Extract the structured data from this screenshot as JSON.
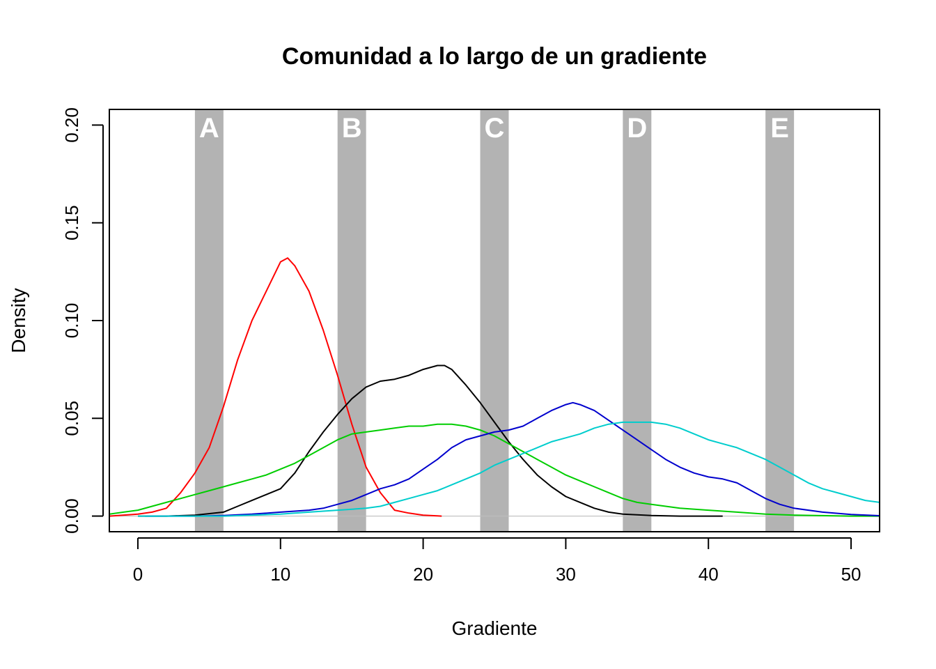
{
  "chart_data": {
    "type": "line",
    "title": "Comunidad a lo largo de un gradiente",
    "xlabel": "Gradiente",
    "ylabel": "Density",
    "xlim": [
      -2,
      52
    ],
    "ylim": [
      -0.008,
      0.208
    ],
    "x_ticks": [
      0,
      10,
      20,
      30,
      40,
      50
    ],
    "x_tick_labels": [
      "0",
      "10",
      "20",
      "30",
      "40",
      "50"
    ],
    "y_ticks": [
      0,
      0.05,
      0.1,
      0.15,
      0.2
    ],
    "y_tick_labels": [
      "0.00",
      "0.05",
      "0.10",
      "0.15",
      "0.20"
    ],
    "baseline_color": "#bebebe",
    "bands": [
      {
        "label": "A",
        "from": 4,
        "to": 6
      },
      {
        "label": "B",
        "from": 14,
        "to": 16
      },
      {
        "label": "C",
        "from": 24,
        "to": 26
      },
      {
        "label": "D",
        "from": 34,
        "to": 36
      },
      {
        "label": "E",
        "from": 44,
        "to": 46
      }
    ],
    "band_color": "#b3b3b3",
    "series": [
      {
        "color": "#ff0000",
        "points": [
          [
            -2,
            0
          ],
          [
            0,
            0.001
          ],
          [
            1,
            0.002
          ],
          [
            2,
            0.004
          ],
          [
            3,
            0.012
          ],
          [
            4,
            0.022
          ],
          [
            5,
            0.035
          ],
          [
            6,
            0.056
          ],
          [
            7,
            0.08
          ],
          [
            8,
            0.1
          ],
          [
            9,
            0.115
          ],
          [
            10,
            0.13
          ],
          [
            10.5,
            0.132
          ],
          [
            11,
            0.128
          ],
          [
            12,
            0.115
          ],
          [
            13,
            0.095
          ],
          [
            14,
            0.072
          ],
          [
            15,
            0.047
          ],
          [
            16,
            0.025
          ],
          [
            17,
            0.012
          ],
          [
            18,
            0.003
          ],
          [
            19,
            0.0015
          ],
          [
            20,
            0.0005
          ],
          [
            21,
            0.0001
          ],
          [
            21.3,
            0
          ]
        ]
      },
      {
        "color": "#000000",
        "points": [
          [
            0,
            0
          ],
          [
            2,
            0
          ],
          [
            4,
            0.0005
          ],
          [
            6,
            0.002
          ],
          [
            7,
            0.005
          ],
          [
            8,
            0.008
          ],
          [
            9,
            0.011
          ],
          [
            10,
            0.014
          ],
          [
            11,
            0.022
          ],
          [
            12,
            0.033
          ],
          [
            13,
            0.043
          ],
          [
            14,
            0.052
          ],
          [
            15,
            0.06
          ],
          [
            16,
            0.066
          ],
          [
            17,
            0.069
          ],
          [
            18,
            0.07
          ],
          [
            19,
            0.072
          ],
          [
            20,
            0.075
          ],
          [
            21,
            0.077
          ],
          [
            21.5,
            0.077
          ],
          [
            22,
            0.075
          ],
          [
            23,
            0.067
          ],
          [
            24,
            0.058
          ],
          [
            25,
            0.048
          ],
          [
            26,
            0.038
          ],
          [
            27,
            0.029
          ],
          [
            28,
            0.021
          ],
          [
            29,
            0.015
          ],
          [
            30,
            0.01
          ],
          [
            31,
            0.007
          ],
          [
            32,
            0.004
          ],
          [
            33,
            0.002
          ],
          [
            34,
            0.001
          ],
          [
            36,
            0.0003
          ],
          [
            38,
            0
          ],
          [
            41,
            0
          ]
        ]
      },
      {
        "color": "#00cd00",
        "points": [
          [
            -2,
            0.001
          ],
          [
            -1,
            0.002
          ],
          [
            0,
            0.003
          ],
          [
            1,
            0.005
          ],
          [
            2,
            0.007
          ],
          [
            3,
            0.009
          ],
          [
            4,
            0.011
          ],
          [
            5,
            0.013
          ],
          [
            6,
            0.015
          ],
          [
            7,
            0.017
          ],
          [
            8,
            0.019
          ],
          [
            9,
            0.021
          ],
          [
            10,
            0.024
          ],
          [
            11,
            0.027
          ],
          [
            12,
            0.031
          ],
          [
            13,
            0.035
          ],
          [
            14,
            0.039
          ],
          [
            15,
            0.042
          ],
          [
            16,
            0.043
          ],
          [
            17,
            0.044
          ],
          [
            18,
            0.045
          ],
          [
            19,
            0.046
          ],
          [
            20,
            0.046
          ],
          [
            21,
            0.047
          ],
          [
            22,
            0.047
          ],
          [
            23,
            0.046
          ],
          [
            24,
            0.044
          ],
          [
            25,
            0.041
          ],
          [
            26,
            0.037
          ],
          [
            27,
            0.033
          ],
          [
            28,
            0.029
          ],
          [
            29,
            0.025
          ],
          [
            30,
            0.021
          ],
          [
            31,
            0.018
          ],
          [
            32,
            0.015
          ],
          [
            33,
            0.012
          ],
          [
            34,
            0.009
          ],
          [
            35,
            0.007
          ],
          [
            36,
            0.006
          ],
          [
            38,
            0.004
          ],
          [
            40,
            0.003
          ],
          [
            42,
            0.002
          ],
          [
            44,
            0.001
          ],
          [
            46,
            0.0005
          ],
          [
            50,
            0
          ],
          [
            52,
            0
          ]
        ]
      },
      {
        "color": "#0000cd",
        "points": [
          [
            0.5,
            0
          ],
          [
            4,
            0
          ],
          [
            6,
            0.0003
          ],
          [
            8,
            0.001
          ],
          [
            10,
            0.002
          ],
          [
            12,
            0.003
          ],
          [
            13,
            0.004
          ],
          [
            14,
            0.006
          ],
          [
            15,
            0.008
          ],
          [
            16,
            0.011
          ],
          [
            17,
            0.014
          ],
          [
            18,
            0.016
          ],
          [
            19,
            0.019
          ],
          [
            20,
            0.024
          ],
          [
            21,
            0.029
          ],
          [
            22,
            0.035
          ],
          [
            23,
            0.039
          ],
          [
            24,
            0.041
          ],
          [
            25,
            0.043
          ],
          [
            26,
            0.044
          ],
          [
            27,
            0.046
          ],
          [
            28,
            0.05
          ],
          [
            29,
            0.054
          ],
          [
            30,
            0.057
          ],
          [
            30.5,
            0.058
          ],
          [
            31,
            0.057
          ],
          [
            32,
            0.054
          ],
          [
            33,
            0.049
          ],
          [
            34,
            0.044
          ],
          [
            35,
            0.039
          ],
          [
            36,
            0.034
          ],
          [
            37,
            0.029
          ],
          [
            38,
            0.025
          ],
          [
            39,
            0.022
          ],
          [
            40,
            0.02
          ],
          [
            41,
            0.019
          ],
          [
            42,
            0.017
          ],
          [
            43,
            0.013
          ],
          [
            44,
            0.009
          ],
          [
            45,
            0.006
          ],
          [
            46,
            0.004
          ],
          [
            48,
            0.002
          ],
          [
            50,
            0.0008
          ],
          [
            52,
            0.0002
          ]
        ]
      },
      {
        "color": "#00cdcd",
        "points": [
          [
            0,
            0
          ],
          [
            6,
            0
          ],
          [
            8,
            0.0005
          ],
          [
            10,
            0.001
          ],
          [
            12,
            0.002
          ],
          [
            14,
            0.003
          ],
          [
            16,
            0.004
          ],
          [
            17,
            0.005
          ],
          [
            18,
            0.007
          ],
          [
            19,
            0.009
          ],
          [
            20,
            0.011
          ],
          [
            21,
            0.013
          ],
          [
            22,
            0.016
          ],
          [
            23,
            0.019
          ],
          [
            24,
            0.022
          ],
          [
            25,
            0.026
          ],
          [
            26,
            0.029
          ],
          [
            27,
            0.032
          ],
          [
            28,
            0.035
          ],
          [
            29,
            0.038
          ],
          [
            30,
            0.04
          ],
          [
            31,
            0.042
          ],
          [
            32,
            0.045
          ],
          [
            33,
            0.047
          ],
          [
            34,
            0.048
          ],
          [
            35,
            0.048
          ],
          [
            36,
            0.048
          ],
          [
            37,
            0.047
          ],
          [
            38,
            0.045
          ],
          [
            39,
            0.042
          ],
          [
            40,
            0.039
          ],
          [
            41,
            0.037
          ],
          [
            42,
            0.035
          ],
          [
            43,
            0.032
          ],
          [
            44,
            0.029
          ],
          [
            45,
            0.025
          ],
          [
            46,
            0.021
          ],
          [
            47,
            0.017
          ],
          [
            48,
            0.014
          ],
          [
            49,
            0.012
          ],
          [
            50,
            0.01
          ],
          [
            51,
            0.008
          ],
          [
            52,
            0.007
          ]
        ]
      }
    ]
  }
}
